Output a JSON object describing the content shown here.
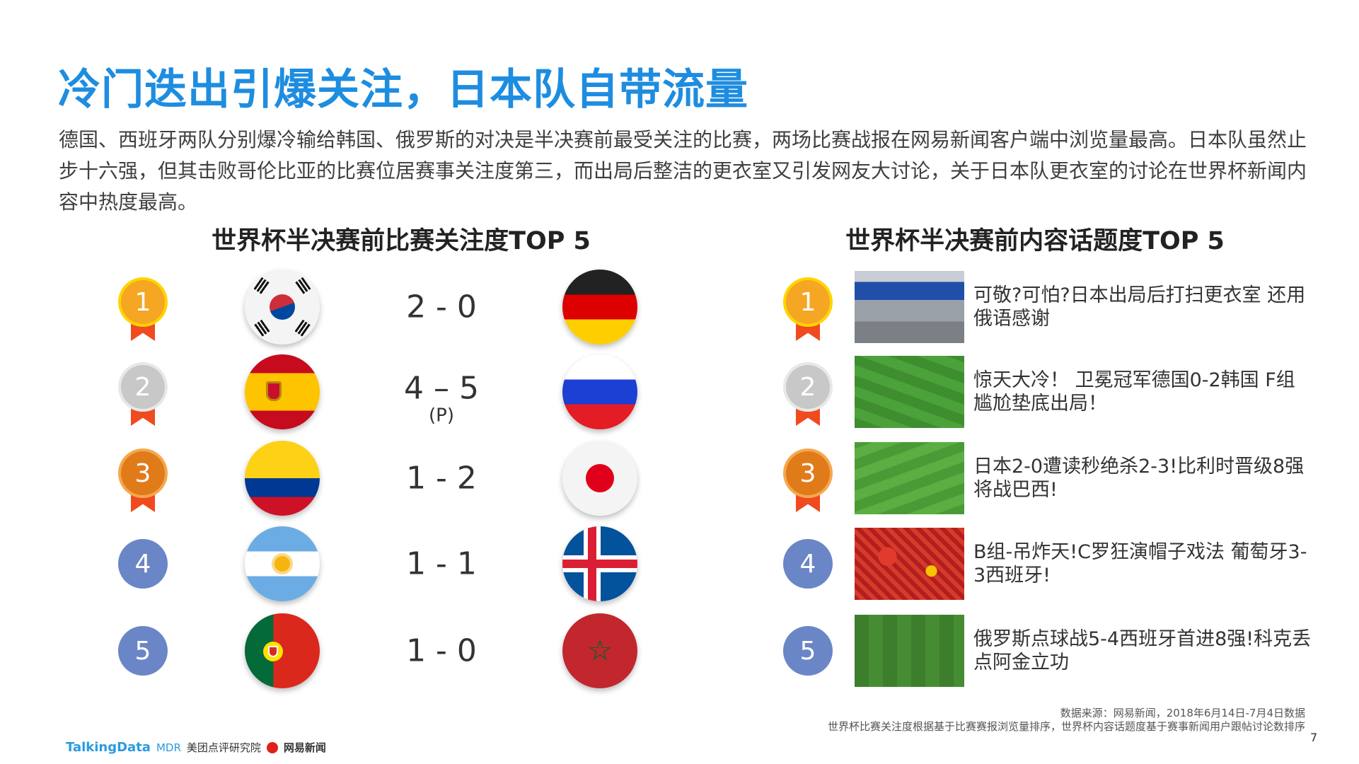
{
  "title": "冷门迭出引爆关注，日本队自带流量",
  "paragraph": "德国、西班牙两队分别爆冷输给韩国、俄罗斯的对决是半决赛前最受关注的比赛，两场比赛战报在网易新闻客户端中浏览量最高。日本队虽然止步十六强，但其击败哥伦比亚的比赛位居赛事关注度第三，而出局后整洁的更衣室又引发网友大讨论，关于日本队更衣室的讨论在世界杯新闻内容中热度最高。",
  "left": {
    "title": "世界杯半决赛前比赛关注度TOP 5",
    "matches": [
      {
        "rank": "1",
        "team1": "Korea",
        "team2": "Germany",
        "score": "2 - 0",
        "note": ""
      },
      {
        "rank": "2",
        "team1": "Spain",
        "team2": "Russia",
        "score": "4 – 5",
        "note": "(P)"
      },
      {
        "rank": "3",
        "team1": "Colombia",
        "team2": "Japan",
        "score": "1 - 2",
        "note": ""
      },
      {
        "rank": "4",
        "team1": "Argentina",
        "team2": "Iceland",
        "score": "1 - 1",
        "note": ""
      },
      {
        "rank": "5",
        "team1": "Portugal",
        "team2": "Morocco",
        "score": "1 - 0",
        "note": ""
      }
    ]
  },
  "right": {
    "title": "世界杯半决赛前内容话题度TOP 5",
    "items": [
      {
        "rank": "1",
        "text": "可敬?可怕?日本出局后打扫更衣室 还用俄语感谢"
      },
      {
        "rank": "2",
        "text": "惊天大冷！ 卫冕冠军德国0-2韩国 F组尴尬垫底出局！"
      },
      {
        "rank": "3",
        "text": "日本2-0遭读秒绝杀2-3!比利时晋级8强将战巴西!"
      },
      {
        "rank": "4",
        "text": "B组-吊炸天!C罗狂演帽子戏法 葡萄牙3-3西班牙!"
      },
      {
        "rank": "5",
        "text": "俄罗斯点球战5-4西班牙首进8强!科克丢点阿金立功"
      }
    ]
  },
  "footer": {
    "source": "数据来源：网易新闻，2018年6月14日-7月4日数据",
    "note": "世界杯比赛关注度根据基于比赛赛报浏览量排序，世界杯内容话题度基于赛事新闻用户跟帖讨论数排序",
    "page": "7",
    "logos": [
      "TalkingData",
      "MDR",
      "美团点评研究院",
      "网易新闻"
    ]
  },
  "colors": {
    "title": "#1e8de0",
    "gold": "#f5a623",
    "silver": "#c8c8c8",
    "bronze": "#e07b1a",
    "rank_blue": "#6b86c6",
    "ribbon": "#f04a1f"
  }
}
